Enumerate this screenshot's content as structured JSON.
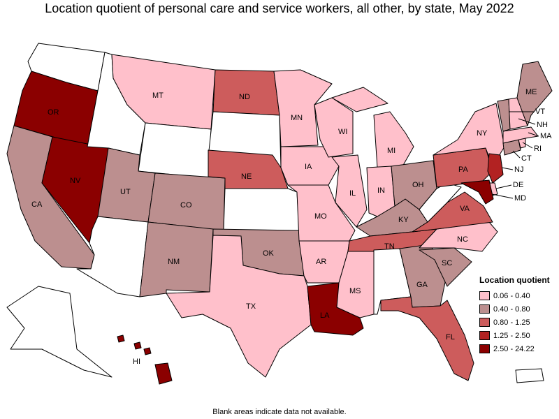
{
  "title": "Location quotient of personal care and service workers, all other, by state, May 2022",
  "legend": {
    "title": "Location quotient",
    "items": [
      {
        "label": "0.06 - 0.40",
        "color": "#ffc0cb"
      },
      {
        "label": "0.40 - 0.80",
        "color": "#bc8f8f"
      },
      {
        "label": "0.80 - 1.25",
        "color": "#cd5c5c"
      },
      {
        "label": "1.25 - 2.50",
        "color": "#b22222"
      },
      {
        "label": "2.50 - 24.22",
        "color": "#8b0000"
      }
    ]
  },
  "footnote": "Blank areas indicate data not available.",
  "state_labels": {
    "WA": "",
    "OR": "OR",
    "CA": "CA",
    "NV": "NV",
    "ID": "",
    "MT": "MT",
    "WY": "",
    "UT": "UT",
    "CO": "CO",
    "AZ": "",
    "NM": "NM",
    "ND": "ND",
    "SD": "",
    "NE": "NE",
    "KS": "",
    "OK": "OK",
    "TX": "TX",
    "MN": "MN",
    "IA": "IA",
    "MO": "MO",
    "AR": "AR",
    "LA": "LA",
    "WI": "WI",
    "IL": "IL",
    "MS": "MS",
    "MI": "MI",
    "IN": "IN",
    "KY": "KY",
    "TN": "TN",
    "AL": "",
    "OH": "OH",
    "GA": "GA",
    "FL": "FL",
    "SC": "SC",
    "NC": "NC",
    "VA": "VA",
    "WV": "",
    "PA": "PA",
    "NY": "NY",
    "ME": "ME",
    "VT": "VT",
    "NH": "NH",
    "MA": "MA",
    "RI": "RI",
    "CT": "CT",
    "NJ": "NJ",
    "DE": "DE",
    "MD": "MD",
    "AK": "",
    "HI": "HI"
  },
  "state_colors": {
    "WA": "#ffffff",
    "OR": "#8b0000",
    "CA": "#bc8f8f",
    "NV": "#8b0000",
    "ID": "#ffffff",
    "MT": "#ffc0cb",
    "WY": "#ffffff",
    "UT": "#bc8f8f",
    "CO": "#bc8f8f",
    "AZ": "#ffffff",
    "NM": "#bc8f8f",
    "ND": "#cd5c5c",
    "SD": "#ffffff",
    "NE": "#cd5c5c",
    "KS": "#ffffff",
    "OK": "#bc8f8f",
    "TX": "#ffc0cb",
    "MN": "#ffc0cb",
    "IA": "#ffc0cb",
    "MO": "#ffc0cb",
    "AR": "#ffc0cb",
    "LA": "#8b0000",
    "WI": "#ffc0cb",
    "IL": "#ffc0cb",
    "MS": "#ffc0cb",
    "MI": "#ffc0cb",
    "IN": "#ffc0cb",
    "KY": "#bc8f8f",
    "TN": "#cd5c5c",
    "AL": "#ffffff",
    "OH": "#bc8f8f",
    "GA": "#bc8f8f",
    "FL": "#cd5c5c",
    "SC": "#bc8f8f",
    "NC": "#ffc0cb",
    "VA": "#cd5c5c",
    "WV": "#ffffff",
    "PA": "#cd5c5c",
    "NY": "#ffc0cb",
    "ME": "#bc8f8f",
    "VT": "#bc8f8f",
    "NH": "#ffc0cb",
    "MA": "#ffc0cb",
    "RI": "#ffc0cb",
    "CT": "#bc8f8f",
    "NJ": "#b22222",
    "DE": "#ffc0cb",
    "MD": "#8b0000",
    "AK": "#ffffff",
    "HI": "#8b0000",
    "PR": "#ffffff"
  }
}
